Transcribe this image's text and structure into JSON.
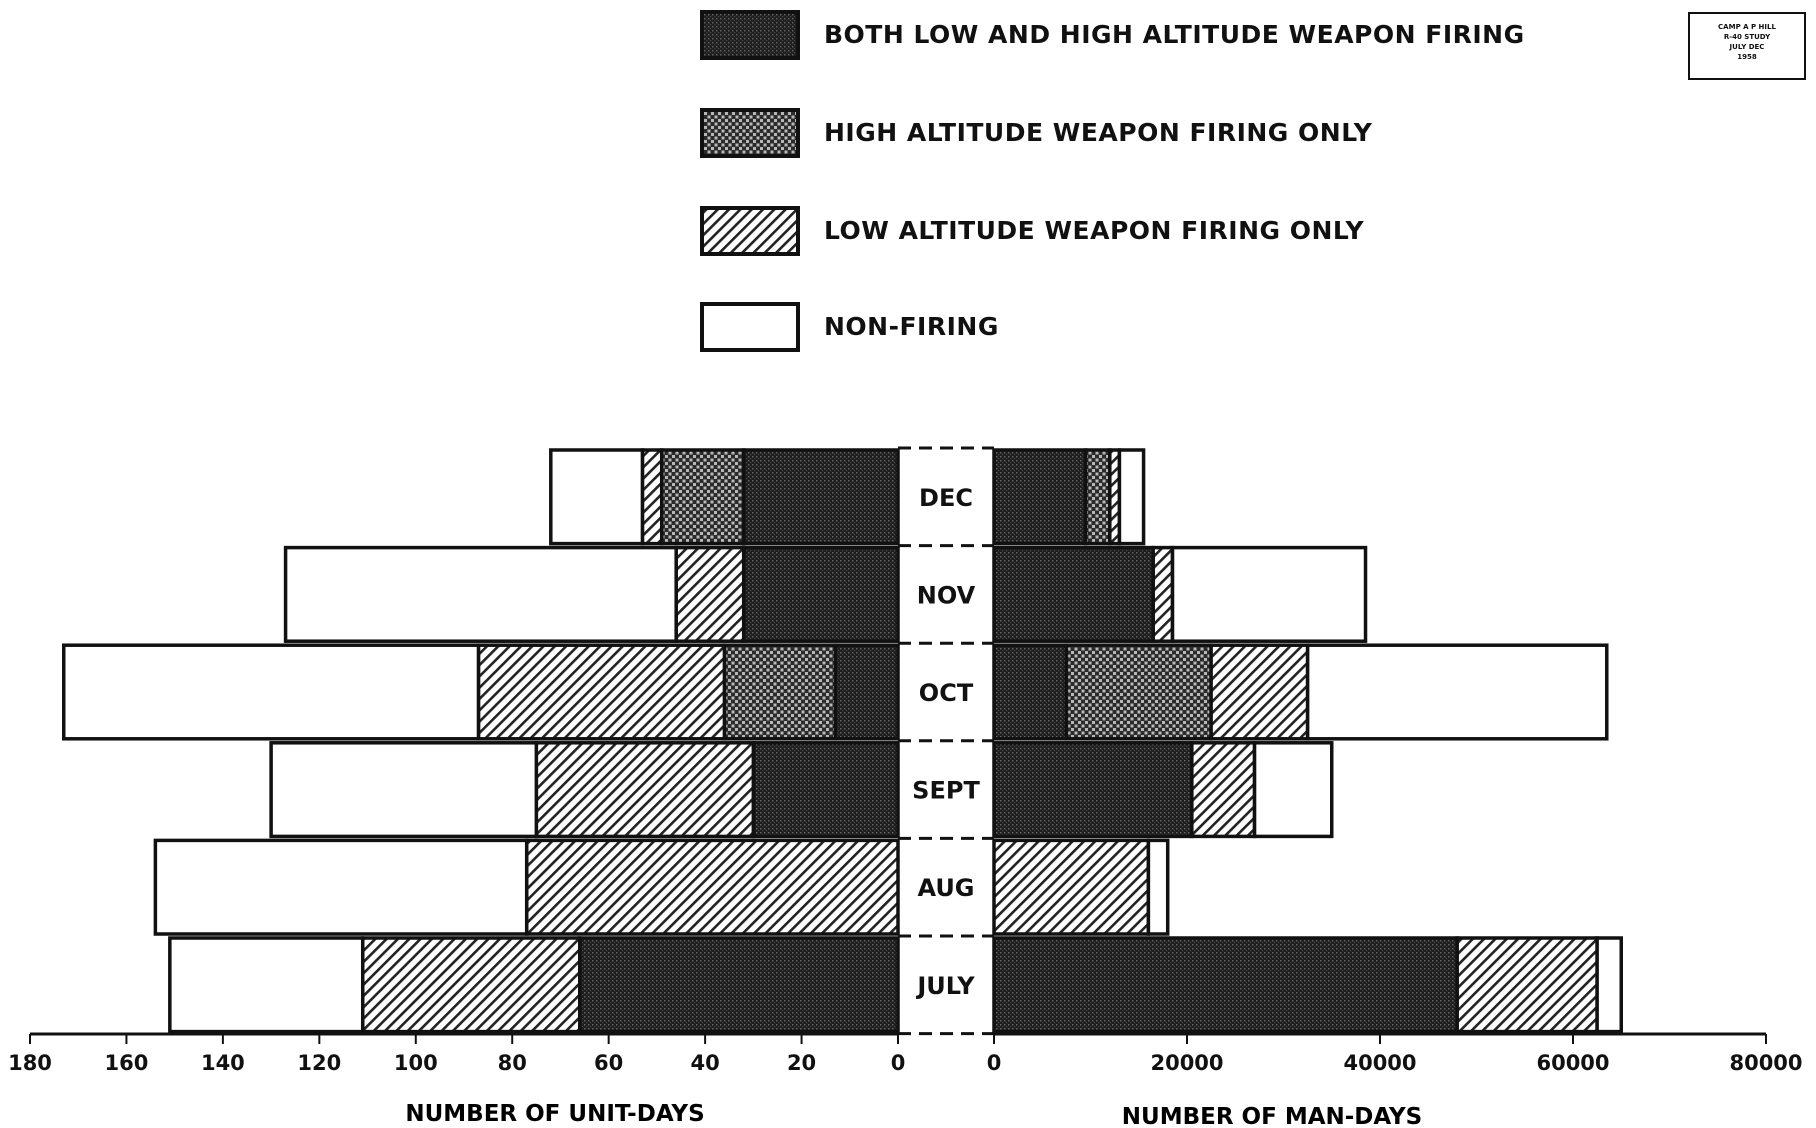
{
  "stamp": {
    "lines": [
      "CAMP A P HILL",
      "R-40 STUDY",
      "JULY DEC",
      "1958"
    ]
  },
  "chart_data": {
    "type": "bar",
    "orientation": "horizontal-back-to-back",
    "categories": [
      "DEC",
      "NOV",
      "OCT",
      "SEPT",
      "AUG",
      "JULY"
    ],
    "legend": [
      {
        "key": "both",
        "label": "BOTH LOW AND HIGH ALTITUDE WEAPON FIRING",
        "pattern": "dense-dots"
      },
      {
        "key": "high",
        "label": "HIGH ALTITUDE WEAPON FIRING ONLY",
        "pattern": "checker"
      },
      {
        "key": "low",
        "label": "LOW ALTITUDE WEAPON FIRING ONLY",
        "pattern": "diagonal-hatch"
      },
      {
        "key": "non",
        "label": "NON-FIRING",
        "pattern": "blank"
      }
    ],
    "legend_position": "top",
    "stacked": true,
    "left_panel": {
      "xlabel": "NUMBER OF UNIT-DAYS",
      "xlim": [
        0,
        180
      ],
      "direction": "right-to-left",
      "ticks": [
        180,
        160,
        140,
        120,
        100,
        80,
        60,
        40,
        20,
        0
      ],
      "series": [
        {
          "key": "both",
          "values": [
            32,
            32,
            13,
            30,
            0,
            66
          ]
        },
        {
          "key": "high",
          "values": [
            17,
            0,
            23,
            0,
            0,
            0
          ]
        },
        {
          "key": "low",
          "values": [
            4,
            14,
            51,
            45,
            77,
            45
          ]
        },
        {
          "key": "non",
          "values": [
            19,
            81,
            86,
            55,
            77,
            40
          ]
        }
      ]
    },
    "right_panel": {
      "xlabel": "NUMBER OF MAN-DAYS",
      "xlim": [
        0,
        80000
      ],
      "direction": "left-to-right",
      "ticks": [
        0,
        20000,
        40000,
        60000,
        80000
      ],
      "series": [
        {
          "key": "both",
          "values": [
            9500,
            16500,
            7500,
            20500,
            0,
            48000
          ]
        },
        {
          "key": "high",
          "values": [
            2500,
            0,
            15000,
            0,
            0,
            0
          ]
        },
        {
          "key": "low",
          "values": [
            1000,
            2000,
            10000,
            6500,
            16000,
            14500
          ]
        },
        {
          "key": "non",
          "values": [
            2500,
            20000,
            31000,
            8000,
            2000,
            2500
          ]
        }
      ]
    }
  }
}
